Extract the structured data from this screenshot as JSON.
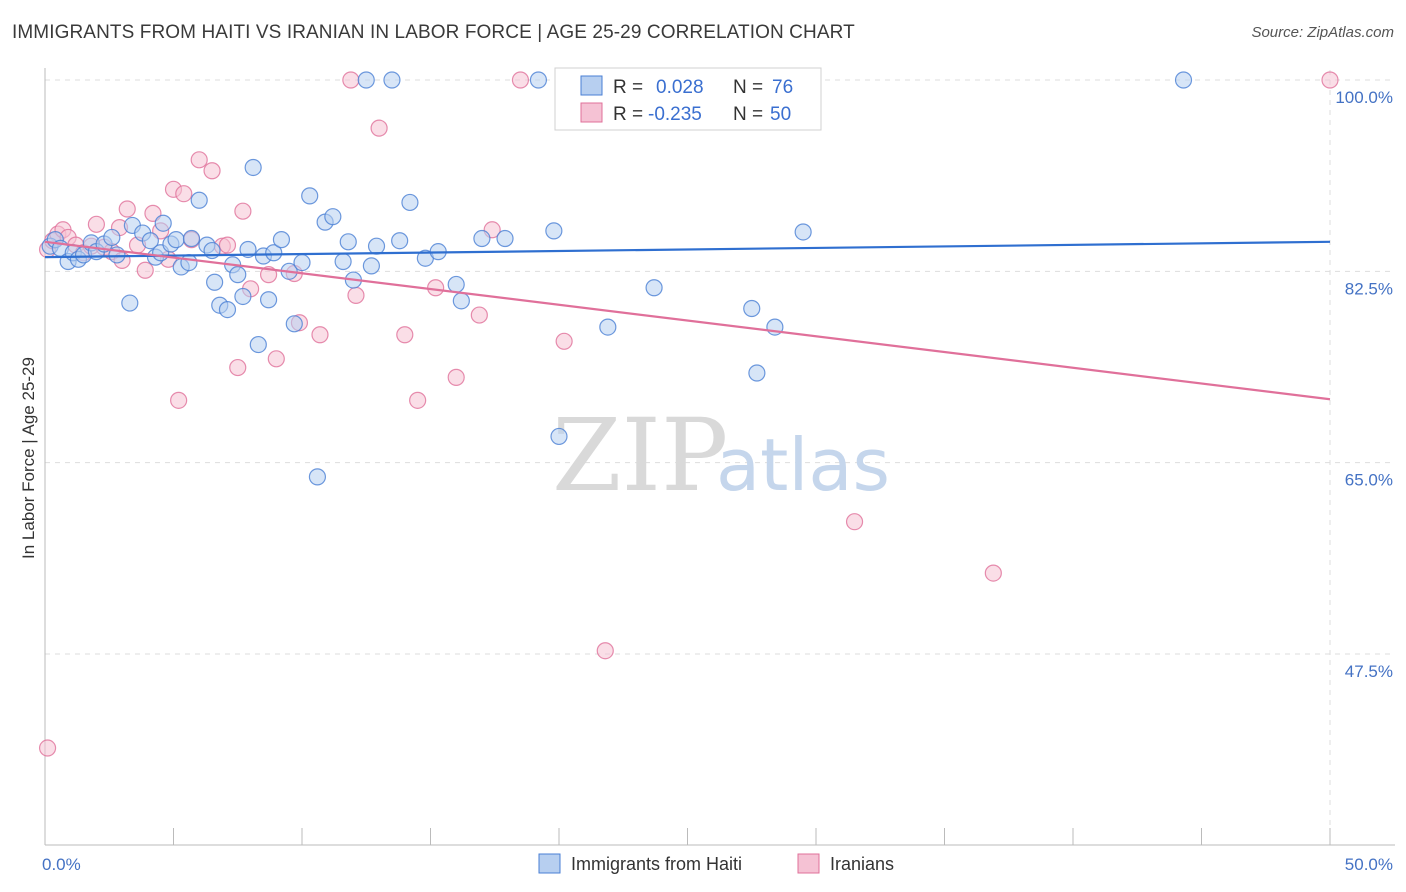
{
  "header": {
    "title": "IMMIGRANTS FROM HAITI VS IRANIAN IN LABOR FORCE | AGE 25-29 CORRELATION CHART",
    "source": "Source: ZipAtlas.com"
  },
  "watermark": {
    "zip": "ZIP",
    "atlas": "atlas"
  },
  "colors": {
    "haiti": "#4a7fd4",
    "haiti_fill": "#b7cff0",
    "iranians": "#e0709a",
    "iranians_fill": "#f5c2d4",
    "grid": "#dddddd",
    "axis_labels": "#4472c4"
  },
  "stats_legend": {
    "rows": [
      {
        "r_label": "R =",
        "r_value": "0.028",
        "n_label": "N =",
        "n_value": "76"
      },
      {
        "r_label": "R =",
        "r_value": "-0.235",
        "n_label": "N =",
        "n_value": "50"
      }
    ]
  },
  "chart_data": {
    "type": "scatter",
    "xlabel": "",
    "ylabel": "In Labor Force | Age 25-29",
    "xlim": [
      0,
      50
    ],
    "ylim": [
      32,
      101
    ],
    "x_tick_labels": [
      "0.0%",
      "50.0%"
    ],
    "y_ticks": [
      47.5,
      65.0,
      82.5,
      100.0
    ],
    "y_tick_labels": [
      "47.5%",
      "65.0%",
      "82.5%",
      "100.0%"
    ],
    "grid": true,
    "legend_position": "bottom-center",
    "series": [
      {
        "name": "Immigrants from Haiti",
        "trend": [
          [
            0,
            83.8
          ],
          [
            50,
            85.2
          ]
        ],
        "points": [
          [
            0.2,
            84.8
          ],
          [
            0.4,
            85.4
          ],
          [
            0.6,
            84.6
          ],
          [
            0.9,
            83.4
          ],
          [
            1.1,
            84.2
          ],
          [
            1.3,
            83.6
          ],
          [
            1.5,
            84.0
          ],
          [
            1.8,
            85.1
          ],
          [
            2.0,
            84.3
          ],
          [
            2.3,
            85.0
          ],
          [
            2.6,
            85.6
          ],
          [
            2.8,
            84.0
          ],
          [
            3.3,
            79.6
          ],
          [
            3.4,
            86.7
          ],
          [
            3.8,
            86.0
          ],
          [
            4.1,
            85.3
          ],
          [
            4.3,
            83.8
          ],
          [
            4.5,
            84.2
          ],
          [
            4.6,
            86.9
          ],
          [
            4.9,
            85.0
          ],
          [
            5.1,
            85.4
          ],
          [
            5.3,
            82.9
          ],
          [
            5.6,
            83.3
          ],
          [
            5.7,
            85.5
          ],
          [
            6.0,
            89.0
          ],
          [
            6.3,
            84.9
          ],
          [
            6.5,
            84.4
          ],
          [
            6.6,
            81.5
          ],
          [
            6.8,
            79.4
          ],
          [
            7.1,
            79.0
          ],
          [
            7.3,
            83.1
          ],
          [
            7.5,
            82.2
          ],
          [
            7.7,
            80.2
          ],
          [
            7.9,
            84.5
          ],
          [
            8.1,
            92.0
          ],
          [
            8.3,
            75.8
          ],
          [
            8.5,
            83.9
          ],
          [
            8.7,
            79.9
          ],
          [
            8.9,
            84.2
          ],
          [
            9.2,
            85.4
          ],
          [
            9.5,
            82.5
          ],
          [
            9.7,
            77.7
          ],
          [
            10.0,
            83.3
          ],
          [
            10.3,
            89.4
          ],
          [
            10.6,
            63.7
          ],
          [
            10.9,
            87.0
          ],
          [
            11.2,
            87.5
          ],
          [
            11.6,
            83.4
          ],
          [
            11.8,
            85.2
          ],
          [
            12.0,
            81.7
          ],
          [
            12.5,
            100.0
          ],
          [
            12.7,
            83.0
          ],
          [
            12.9,
            84.8
          ],
          [
            13.5,
            100.0
          ],
          [
            13.8,
            85.3
          ],
          [
            14.2,
            88.8
          ],
          [
            14.8,
            83.7
          ],
          [
            15.3,
            84.3
          ],
          [
            16.0,
            81.3
          ],
          [
            16.2,
            79.8
          ],
          [
            17.0,
            85.5
          ],
          [
            17.9,
            85.5
          ],
          [
            19.2,
            100.0
          ],
          [
            19.8,
            86.2
          ],
          [
            20.0,
            67.4
          ],
          [
            21.9,
            77.4
          ],
          [
            23.7,
            81.0
          ],
          [
            27.5,
            79.1
          ],
          [
            27.7,
            73.2
          ],
          [
            28.4,
            77.4
          ],
          [
            29.5,
            86.1
          ],
          [
            44.3,
            100.0
          ]
        ]
      },
      {
        "name": "Iranians",
        "trend": [
          [
            0,
            85.2
          ],
          [
            50,
            70.8
          ]
        ],
        "points": [
          [
            0.1,
            84.5
          ],
          [
            0.3,
            85.3
          ],
          [
            0.5,
            85.9
          ],
          [
            0.7,
            86.3
          ],
          [
            0.9,
            85.6
          ],
          [
            1.2,
            84.9
          ],
          [
            1.5,
            84.2
          ],
          [
            1.8,
            84.8
          ],
          [
            2.0,
            86.8
          ],
          [
            2.3,
            84.7
          ],
          [
            2.6,
            84.3
          ],
          [
            2.9,
            86.5
          ],
          [
            3.0,
            83.5
          ],
          [
            3.2,
            88.2
          ],
          [
            3.6,
            84.9
          ],
          [
            3.9,
            82.6
          ],
          [
            4.2,
            87.8
          ],
          [
            4.5,
            86.2
          ],
          [
            4.8,
            83.6
          ],
          [
            5.0,
            90.0
          ],
          [
            5.2,
            70.7
          ],
          [
            5.4,
            89.6
          ],
          [
            5.7,
            85.4
          ],
          [
            6.0,
            92.7
          ],
          [
            6.5,
            91.7
          ],
          [
            6.9,
            84.8
          ],
          [
            7.1,
            84.9
          ],
          [
            7.5,
            73.7
          ],
          [
            7.7,
            88.0
          ],
          [
            8.0,
            80.9
          ],
          [
            8.7,
            82.2
          ],
          [
            9.0,
            74.5
          ],
          [
            9.7,
            82.3
          ],
          [
            9.9,
            77.8
          ],
          [
            10.7,
            76.7
          ],
          [
            11.9,
            100.0
          ],
          [
            12.1,
            80.3
          ],
          [
            13.0,
            95.6
          ],
          [
            14.0,
            76.7
          ],
          [
            14.5,
            70.7
          ],
          [
            15.2,
            81.0
          ],
          [
            16.0,
            72.8
          ],
          [
            16.9,
            78.5
          ],
          [
            17.4,
            86.3
          ],
          [
            18.5,
            100.0
          ],
          [
            20.2,
            76.1
          ],
          [
            21.8,
            47.8
          ],
          [
            31.5,
            59.6
          ],
          [
            36.9,
            54.9
          ],
          [
            50.0,
            100.0
          ],
          [
            0.1,
            38.9
          ]
        ]
      }
    ]
  },
  "bottom_legend": {
    "items": [
      {
        "label": "Immigrants from Haiti"
      },
      {
        "label": "Iranians"
      }
    ]
  }
}
